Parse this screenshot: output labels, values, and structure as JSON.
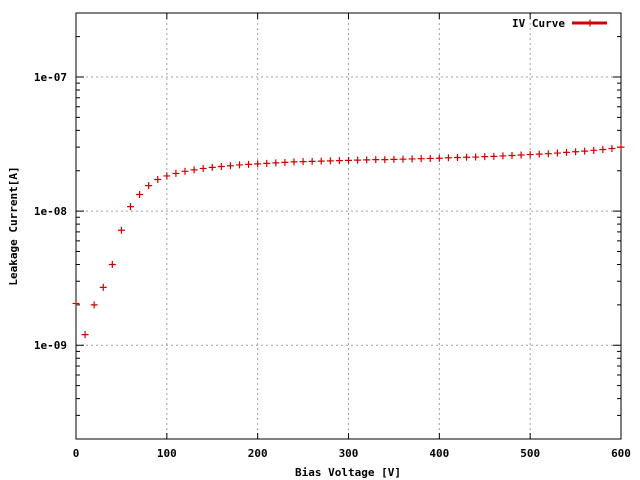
{
  "chart_data": {
    "type": "scatter",
    "title": "",
    "xlabel": "Bias Voltage [V]",
    "ylabel": "Leakage Current[A]",
    "xlim": [
      0,
      600
    ],
    "ylim": [
      2e-10,
      3e-07
    ],
    "yscale": "log",
    "grid": true,
    "legend_position": "top-right",
    "x_ticks": [
      0,
      100,
      200,
      300,
      400,
      500,
      600
    ],
    "x_tick_labels": [
      "0",
      "100",
      "200",
      "300",
      "400",
      "500",
      "600"
    ],
    "y_ticks": [
      1e-09,
      1e-08,
      1e-07
    ],
    "y_tick_labels": [
      "1e-09",
      "1e-08",
      "1e-07"
    ],
    "series": [
      {
        "name": "IV Curve",
        "color": "#d00000",
        "marker": "plus",
        "x": [
          0,
          10,
          20,
          30,
          40,
          50,
          60,
          70,
          80,
          90,
          100,
          110,
          120,
          130,
          140,
          150,
          160,
          170,
          180,
          190,
          200,
          210,
          220,
          230,
          240,
          250,
          260,
          270,
          280,
          290,
          300,
          310,
          320,
          330,
          340,
          350,
          360,
          370,
          380,
          390,
          400,
          410,
          420,
          430,
          440,
          450,
          460,
          470,
          480,
          490,
          500,
          510,
          520,
          530,
          540,
          550,
          560,
          570,
          580,
          590,
          600
        ],
        "y": [
          2.05e-09,
          1.2e-09,
          2e-09,
          2.7e-09,
          4e-09,
          7.2e-09,
          1.08e-08,
          1.33e-08,
          1.55e-08,
          1.72e-08,
          1.83e-08,
          1.91e-08,
          1.98e-08,
          2.03e-08,
          2.08e-08,
          2.12e-08,
          2.15e-08,
          2.18e-08,
          2.21e-08,
          2.23e-08,
          2.25e-08,
          2.27e-08,
          2.29e-08,
          2.31e-08,
          2.33e-08,
          2.34e-08,
          2.35e-08,
          2.36e-08,
          2.37e-08,
          2.38e-08,
          2.39e-08,
          2.4e-08,
          2.41e-08,
          2.42e-08,
          2.42e-08,
          2.43e-08,
          2.44e-08,
          2.45e-08,
          2.46e-08,
          2.47e-08,
          2.48e-08,
          2.5e-08,
          2.51e-08,
          2.52e-08,
          2.53e-08,
          2.55e-08,
          2.56e-08,
          2.58e-08,
          2.6e-08,
          2.62e-08,
          2.64e-08,
          2.66e-08,
          2.68e-08,
          2.71e-08,
          2.74e-08,
          2.77e-08,
          2.8e-08,
          2.84e-08,
          2.88e-08,
          2.93e-08,
          3e-08
        ]
      }
    ]
  }
}
